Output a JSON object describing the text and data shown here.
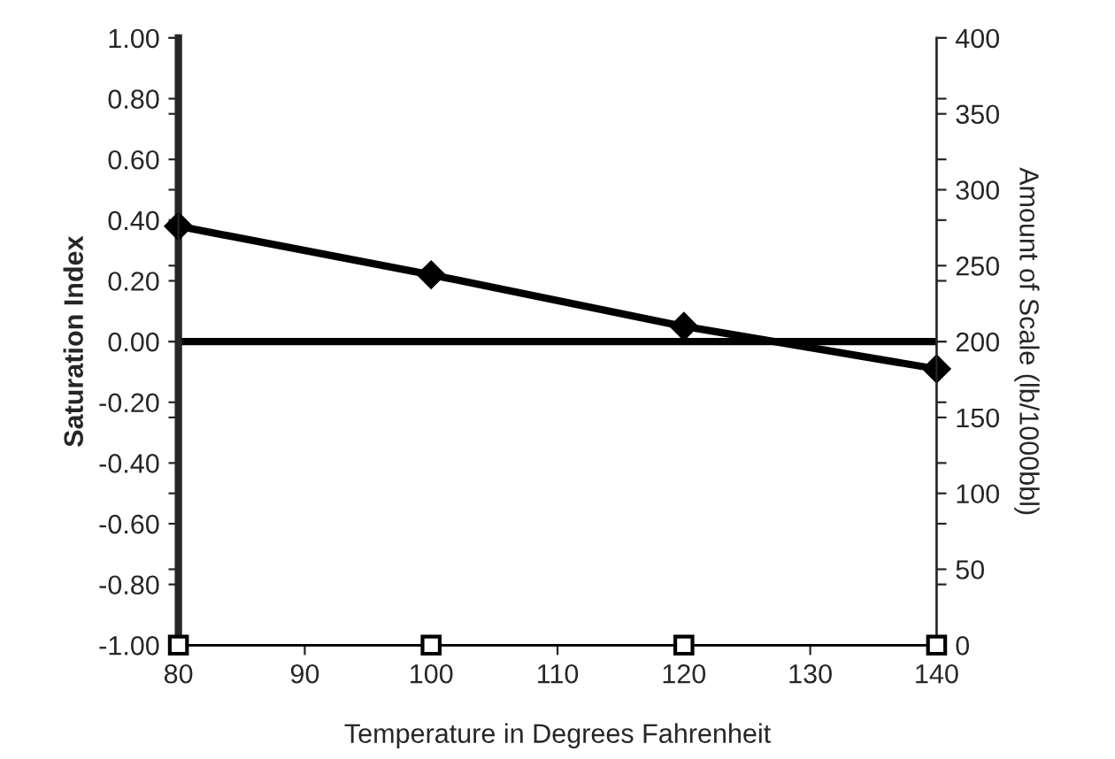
{
  "chart_data": {
    "type": "line",
    "xlabel": "Temperature in Degrees Fahrenheit",
    "ylabel": "Saturation Index",
    "y2label": "Amount of Scale (lb/1000bbl)",
    "x": [
      80,
      100,
      120,
      140
    ],
    "series": [
      {
        "color": "#000000",
        "values": [
          0.38,
          0.22,
          0.05,
          -0.09
        ],
        "marker": "diamond"
      },
      {
        "color": "#000000",
        "values": [
          0,
          0,
          0,
          0
        ],
        "axis": "y2",
        "marker": "square"
      }
    ],
    "xlim": [
      80,
      140
    ],
    "xticks": [
      80,
      90,
      100,
      110,
      120,
      130,
      140
    ],
    "ylim": [
      -1,
      1
    ],
    "yticks": [
      {
        "value": -1,
        "label": "-1.00"
      },
      {
        "value": -0.8,
        "label": "-0.80"
      },
      {
        "value": -0.6,
        "label": "-0.60"
      },
      {
        "value": -0.4,
        "label": "-0.40"
      },
      {
        "value": -0.2,
        "label": "-0.20"
      },
      {
        "value": 0,
        "label": "0.00"
      },
      {
        "value": 0.2,
        "label": "0.20"
      },
      {
        "value": 0.4,
        "label": "0.40"
      },
      {
        "value": 0.6,
        "label": "0.60"
      },
      {
        "value": 0.8,
        "label": "0.80"
      },
      {
        "value": 1,
        "label": "1.00"
      }
    ],
    "y2lim": [
      0,
      400
    ],
    "y2ticks": [
      0,
      50,
      100,
      150,
      200,
      250,
      300,
      350,
      400
    ],
    "ref_lines": [
      {
        "axis": "y",
        "value": 0,
        "color": "#000000"
      }
    ],
    "grid": false,
    "legend": false
  }
}
